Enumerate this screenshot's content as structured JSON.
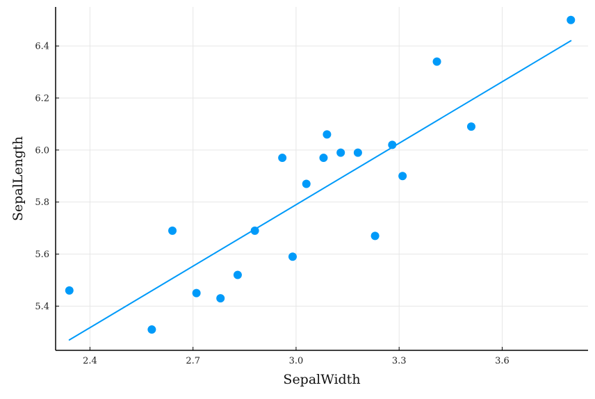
{
  "chart_data": {
    "type": "scatter",
    "title": "",
    "xlabel": "SepalWidth",
    "ylabel": "SepalLength",
    "xlim": [
      2.3,
      3.85
    ],
    "ylim": [
      5.23,
      6.55
    ],
    "xticks": [
      2.4,
      2.7,
      3.0,
      3.3,
      3.6
    ],
    "xtick_labels": [
      "2.4",
      "2.7",
      "3.0",
      "3.3",
      "3.6"
    ],
    "yticks": [
      5.4,
      5.6,
      5.8,
      6.0,
      6.2,
      6.4
    ],
    "ytick_labels": [
      "5.4",
      "5.6",
      "5.8",
      "6.0",
      "6.2",
      "6.4"
    ],
    "grid": true,
    "legend": "none",
    "colors": {
      "points": "#009af9",
      "fit_line": "#009af9"
    },
    "series": [
      {
        "type": "scatter",
        "points": [
          [
            2.34,
            5.46
          ],
          [
            2.58,
            5.31
          ],
          [
            2.64,
            5.69
          ],
          [
            2.71,
            5.45
          ],
          [
            2.78,
            5.43
          ],
          [
            2.83,
            5.52
          ],
          [
            2.88,
            5.69
          ],
          [
            2.96,
            5.97
          ],
          [
            2.99,
            5.59
          ],
          [
            3.03,
            5.87
          ],
          [
            3.08,
            5.97
          ],
          [
            3.09,
            6.06
          ],
          [
            3.13,
            5.99
          ],
          [
            3.18,
            5.99
          ],
          [
            3.23,
            5.67
          ],
          [
            3.28,
            6.02
          ],
          [
            3.31,
            5.9
          ],
          [
            3.41,
            6.34
          ],
          [
            3.51,
            6.09
          ],
          [
            3.8,
            6.5
          ]
        ]
      },
      {
        "type": "line",
        "points": [
          [
            2.34,
            5.27
          ],
          [
            3.8,
            6.42
          ]
        ]
      }
    ]
  }
}
